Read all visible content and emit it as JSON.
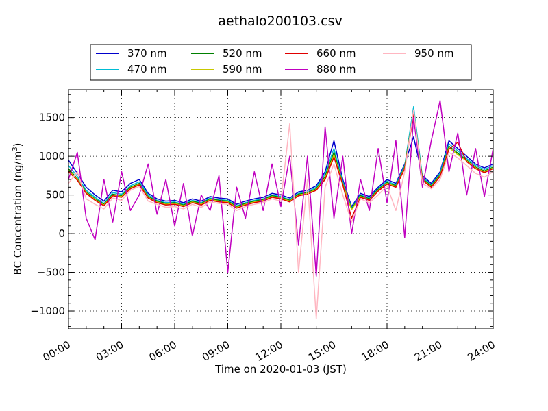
{
  "chart_data": {
    "type": "line",
    "title": "aethalo200103.csv",
    "xlabel": "Time on 2020-01-03 (JST)",
    "ylabel_prefix": "BC Concentration (ng/m",
    "ylabel_sup": "3",
    "ylabel_suffix": ")",
    "xlim_hours": [
      0,
      24
    ],
    "ylim": [
      -1230,
      1860
    ],
    "x_ticks": [
      {
        "hour": 0,
        "label": "00:00"
      },
      {
        "hour": 3,
        "label": "03:00"
      },
      {
        "hour": 6,
        "label": "06:00"
      },
      {
        "hour": 9,
        "label": "09:00"
      },
      {
        "hour": 12,
        "label": "12:00"
      },
      {
        "hour": 15,
        "label": "15:00"
      },
      {
        "hour": 18,
        "label": "18:00"
      },
      {
        "hour": 21,
        "label": "21:00"
      },
      {
        "hour": 24,
        "label": "24:00"
      }
    ],
    "y_ticks": [
      {
        "value": -1000,
        "label": "−1000"
      },
      {
        "value": -500,
        "label": "−500"
      },
      {
        "value": 0,
        "label": "0"
      },
      {
        "value": 500,
        "label": "500"
      },
      {
        "value": 1000,
        "label": "1000"
      },
      {
        "value": 1500,
        "label": "1500"
      }
    ],
    "grid": true,
    "legend_position": "top-center",
    "series": [
      {
        "name": "370 nm",
        "color": "#0000cc",
        "x": [
          0,
          0.5,
          1,
          1.5,
          2,
          2.5,
          3,
          3.5,
          4,
          4.5,
          5,
          5.5,
          6,
          6.5,
          7,
          7.5,
          8,
          8.5,
          9,
          9.5,
          10,
          10.5,
          11,
          11.5,
          12,
          12.5,
          13,
          13.5,
          14,
          14.5,
          15,
          15.5,
          16,
          16.5,
          17,
          17.5,
          18,
          18.5,
          19,
          19.5,
          20,
          20.5,
          21,
          21.5,
          22,
          22.5,
          23,
          23.5,
          24
        ],
        "y": [
          950,
          780,
          600,
          500,
          420,
          560,
          540,
          650,
          700,
          520,
          450,
          420,
          430,
          400,
          450,
          420,
          480,
          460,
          450,
          380,
          420,
          450,
          470,
          520,
          500,
          460,
          540,
          560,
          620,
          800,
          1200,
          700,
          350,
          520,
          480,
          600,
          700,
          650,
          900,
          1250,
          750,
          650,
          800,
          1200,
          1100,
          1000,
          900,
          850,
          900
        ]
      },
      {
        "name": "470 nm",
        "color": "#00bcd4",
        "x": [
          0,
          0.5,
          1,
          1.5,
          2,
          2.5,
          3,
          3.5,
          4,
          4.5,
          5,
          5.5,
          6,
          6.5,
          7,
          7.5,
          8,
          8.5,
          9,
          9.5,
          10,
          10.5,
          11,
          11.5,
          12,
          12.5,
          13,
          13.5,
          14,
          14.5,
          15,
          15.5,
          16,
          16.5,
          17,
          17.5,
          18,
          18.5,
          19,
          19.5,
          20,
          20.5,
          21,
          21.5,
          22,
          22.5,
          23,
          23.5,
          24
        ],
        "y": [
          880,
          740,
          560,
          470,
          390,
          530,
          510,
          620,
          670,
          500,
          430,
          400,
          410,
          380,
          430,
          400,
          460,
          440,
          430,
          360,
          400,
          430,
          450,
          500,
          480,
          440,
          520,
          540,
          600,
          770,
          1100,
          670,
          330,
          500,
          460,
          580,
          680,
          630,
          880,
          1640,
          730,
          630,
          780,
          1160,
          1070,
          970,
          880,
          830,
          880
        ]
      },
      {
        "name": "520 nm",
        "color": "#008000",
        "x": [
          0,
          0.5,
          1,
          1.5,
          2,
          2.5,
          3,
          3.5,
          4,
          4.5,
          5,
          5.5,
          6,
          6.5,
          7,
          7.5,
          8,
          8.5,
          9,
          9.5,
          10,
          10.5,
          11,
          11.5,
          12,
          12.5,
          13,
          13.5,
          14,
          14.5,
          15,
          15.5,
          16,
          16.5,
          17,
          17.5,
          18,
          18.5,
          19,
          19.5,
          20,
          20.5,
          21,
          21.5,
          22,
          22.5,
          23,
          23.5,
          24
        ],
        "y": [
          840,
          710,
          540,
          450,
          380,
          510,
          490,
          600,
          650,
          480,
          420,
          390,
          400,
          370,
          420,
          390,
          450,
          430,
          420,
          350,
          390,
          420,
          440,
          490,
          470,
          430,
          510,
          530,
          580,
          740,
          1050,
          650,
          320,
          490,
          450,
          570,
          660,
          620,
          860,
          1580,
          710,
          620,
          760,
          1130,
          1040,
          950,
          860,
          810,
          860
        ]
      },
      {
        "name": "590 nm",
        "color": "#c8c800",
        "x": [
          0,
          0.5,
          1,
          1.5,
          2,
          2.5,
          3,
          3.5,
          4,
          4.5,
          5,
          5.5,
          6,
          6.5,
          7,
          7.5,
          8,
          8.5,
          9,
          9.5,
          10,
          10.5,
          11,
          11.5,
          12,
          12.5,
          13,
          13.5,
          14,
          14.5,
          15,
          15.5,
          16,
          16.5,
          17,
          17.5,
          18,
          18.5,
          19,
          19.5,
          20,
          20.5,
          21,
          21.5,
          22,
          22.5,
          23,
          23.5,
          24
        ],
        "y": [
          820,
          700,
          530,
          440,
          370,
          500,
          480,
          590,
          640,
          470,
          410,
          380,
          390,
          360,
          410,
          380,
          440,
          420,
          410,
          340,
          380,
          410,
          430,
          480,
          460,
          420,
          500,
          520,
          570,
          720,
          1020,
          640,
          310,
          480,
          440,
          560,
          650,
          610,
          850,
          1560,
          700,
          610,
          750,
          1110,
          1020,
          940,
          850,
          800,
          850
        ]
      },
      {
        "name": "660 nm",
        "color": "#e00000",
        "x": [
          0,
          0.5,
          1,
          1.5,
          2,
          2.5,
          3,
          3.5,
          4,
          4.5,
          5,
          5.5,
          6,
          6.5,
          7,
          7.5,
          8,
          8.5,
          9,
          9.5,
          10,
          10.5,
          11,
          11.5,
          12,
          12.5,
          13,
          13.5,
          14,
          14.5,
          15,
          15.5,
          16,
          16.5,
          17,
          17.5,
          18,
          18.5,
          19,
          19.5,
          20,
          20.5,
          21,
          21.5,
          22,
          22.5,
          23,
          23.5,
          24
        ],
        "y": [
          800,
          690,
          520,
          430,
          360,
          490,
          470,
          580,
          630,
          460,
          400,
          370,
          380,
          350,
          400,
          370,
          430,
          410,
          400,
          330,
          370,
          400,
          420,
          470,
          450,
          410,
          490,
          510,
          560,
          700,
          990,
          630,
          200,
          470,
          430,
          550,
          640,
          600,
          840,
          1540,
          690,
          600,
          740,
          1090,
          1180,
          930,
          840,
          790,
          840
        ]
      },
      {
        "name": "880 nm",
        "color": "#c000c0",
        "x": [
          0,
          0.5,
          1,
          1.5,
          2,
          2.5,
          3,
          3.5,
          4,
          4.5,
          5,
          5.5,
          6,
          6.5,
          7,
          7.5,
          8,
          8.5,
          9,
          9.5,
          10,
          10.5,
          11,
          11.5,
          12,
          12.5,
          13,
          13.5,
          14,
          14.5,
          15,
          15.5,
          16,
          16.5,
          17,
          17.5,
          18,
          18.5,
          19,
          19.5,
          20,
          20.5,
          21,
          21.5,
          22,
          22.5,
          23,
          23.5,
          24
        ],
        "y": [
          700,
          1050,
          200,
          -80,
          700,
          150,
          800,
          300,
          500,
          900,
          250,
          700,
          100,
          650,
          -30,
          500,
          300,
          750,
          -500,
          600,
          200,
          800,
          300,
          900,
          350,
          1000,
          -150,
          1000,
          -550,
          1380,
          200,
          1000,
          0,
          700,
          300,
          1100,
          400,
          1200,
          -50,
          1500,
          600,
          1200,
          1720,
          800,
          1300,
          500,
          1100,
          480,
          1100
        ]
      },
      {
        "name": "950 nm",
        "color": "#ffb6c1",
        "x": [
          0,
          0.5,
          1,
          1.5,
          2,
          2.5,
          3,
          3.5,
          4,
          4.5,
          5,
          5.5,
          6,
          6.5,
          7,
          7.5,
          8,
          8.5,
          9,
          9.5,
          10,
          10.5,
          11,
          11.5,
          12,
          12.5,
          13,
          13.5,
          14,
          14.5,
          15,
          15.5,
          16,
          16.5,
          17,
          17.5,
          18,
          18.5,
          19,
          19.5,
          20,
          20.5,
          21,
          21.5,
          22,
          22.5,
          23,
          23.5,
          24
        ],
        "y": [
          650,
          800,
          450,
          380,
          320,
          460,
          430,
          560,
          610,
          420,
          380,
          340,
          350,
          320,
          380,
          340,
          410,
          390,
          380,
          300,
          350,
          380,
          400,
          450,
          420,
          1420,
          -500,
          700,
          -1100,
          600,
          900,
          500,
          150,
          450,
          400,
          500,
          620,
          300,
          800,
          1600,
          650,
          580,
          700,
          1050,
          980,
          880,
          780,
          730,
          800
        ]
      }
    ]
  }
}
